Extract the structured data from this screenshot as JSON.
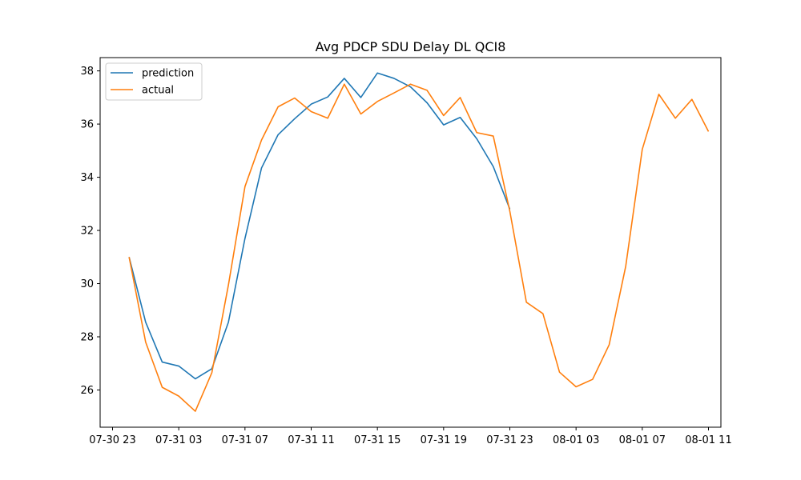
{
  "chart_data": {
    "type": "line",
    "title": "Avg PDCP SDU Delay DL QCI8",
    "xlabel": "",
    "ylabel": "",
    "x_axis": {
      "type": "datetime",
      "range": [
        "2019-07-30 22:15",
        "2019-08-01 11:45"
      ],
      "ticks": [
        {
          "t": "2019-07-30 23:00",
          "label": "07-30 23"
        },
        {
          "t": "2019-07-31 03:00",
          "label": "07-31 03"
        },
        {
          "t": "2019-07-31 07:00",
          "label": "07-31 07"
        },
        {
          "t": "2019-07-31 11:00",
          "label": "07-31 11"
        },
        {
          "t": "2019-07-31 15:00",
          "label": "07-31 15"
        },
        {
          "t": "2019-07-31 19:00",
          "label": "07-31 19"
        },
        {
          "t": "2019-07-31 23:00",
          "label": "07-31 23"
        },
        {
          "t": "2019-08-01 03:00",
          "label": "08-01 03"
        },
        {
          "t": "2019-08-01 07:00",
          "label": "08-01 07"
        },
        {
          "t": "2019-08-01 11:00",
          "label": "08-01 11"
        }
      ]
    },
    "y_axis": {
      "range": [
        24.6,
        38.5
      ],
      "ticks": [
        26,
        28,
        30,
        32,
        34,
        36,
        38
      ]
    },
    "grid": false,
    "legend_position": "top-left",
    "series": [
      {
        "name": "prediction",
        "color": "#1f77b4",
        "points": [
          [
            "2019-07-31 00:00",
            31.0
          ],
          [
            "2019-07-31 01:00",
            28.55
          ],
          [
            "2019-07-31 02:00",
            27.05
          ],
          [
            "2019-07-31 03:00",
            26.9
          ],
          [
            "2019-07-31 04:00",
            26.42
          ],
          [
            "2019-07-31 05:00",
            26.8
          ],
          [
            "2019-07-31 06:00",
            28.55
          ],
          [
            "2019-07-31 07:00",
            31.7
          ],
          [
            "2019-07-31 08:00",
            34.35
          ],
          [
            "2019-07-31 09:00",
            35.6
          ],
          [
            "2019-07-31 10:00",
            36.2
          ],
          [
            "2019-07-31 11:00",
            36.75
          ],
          [
            "2019-07-31 12:00",
            37.02
          ],
          [
            "2019-07-31 13:00",
            37.72
          ],
          [
            "2019-07-31 14:00",
            37.0
          ],
          [
            "2019-07-31 15:00",
            37.92
          ],
          [
            "2019-07-31 16:00",
            37.72
          ],
          [
            "2019-07-31 17:00",
            37.4
          ],
          [
            "2019-07-31 18:00",
            36.8
          ],
          [
            "2019-07-31 19:00",
            35.97
          ],
          [
            "2019-07-31 20:00",
            36.25
          ],
          [
            "2019-07-31 21:00",
            35.45
          ],
          [
            "2019-07-31 22:00",
            34.4
          ],
          [
            "2019-07-31 23:00",
            32.8
          ]
        ]
      },
      {
        "name": "actual",
        "color": "#ff7f0e",
        "points": [
          [
            "2019-07-31 00:00",
            31.0
          ],
          [
            "2019-07-31 01:00",
            27.8
          ],
          [
            "2019-07-31 02:00",
            26.1
          ],
          [
            "2019-07-31 03:00",
            25.77
          ],
          [
            "2019-07-31 04:00",
            25.2
          ],
          [
            "2019-07-31 05:00",
            26.65
          ],
          [
            "2019-07-31 06:00",
            29.95
          ],
          [
            "2019-07-31 07:00",
            33.65
          ],
          [
            "2019-07-31 08:00",
            35.4
          ],
          [
            "2019-07-31 09:00",
            36.65
          ],
          [
            "2019-07-31 10:00",
            36.98
          ],
          [
            "2019-07-31 11:00",
            36.47
          ],
          [
            "2019-07-31 12:00",
            36.22
          ],
          [
            "2019-07-31 13:00",
            37.5
          ],
          [
            "2019-07-31 14:00",
            36.38
          ],
          [
            "2019-07-31 15:00",
            36.85
          ],
          [
            "2019-07-31 16:00",
            37.17
          ],
          [
            "2019-07-31 17:00",
            37.5
          ],
          [
            "2019-07-31 18:00",
            37.27
          ],
          [
            "2019-07-31 19:00",
            36.32
          ],
          [
            "2019-07-31 20:00",
            37.0
          ],
          [
            "2019-07-31 21:00",
            35.68
          ],
          [
            "2019-07-31 22:00",
            35.55
          ],
          [
            "2019-07-31 23:00",
            32.72
          ],
          [
            "2019-08-01 00:00",
            29.3
          ],
          [
            "2019-08-01 01:00",
            28.87
          ],
          [
            "2019-08-01 02:00",
            26.67
          ],
          [
            "2019-08-01 03:00",
            26.12
          ],
          [
            "2019-08-01 04:00",
            26.4
          ],
          [
            "2019-08-01 05:00",
            27.7
          ],
          [
            "2019-08-01 06:00",
            30.65
          ],
          [
            "2019-08-01 07:00",
            35.05
          ],
          [
            "2019-08-01 08:00",
            37.12
          ],
          [
            "2019-08-01 09:00",
            36.22
          ],
          [
            "2019-08-01 10:00",
            36.93
          ],
          [
            "2019-08-01 11:00",
            35.72
          ]
        ]
      }
    ]
  }
}
